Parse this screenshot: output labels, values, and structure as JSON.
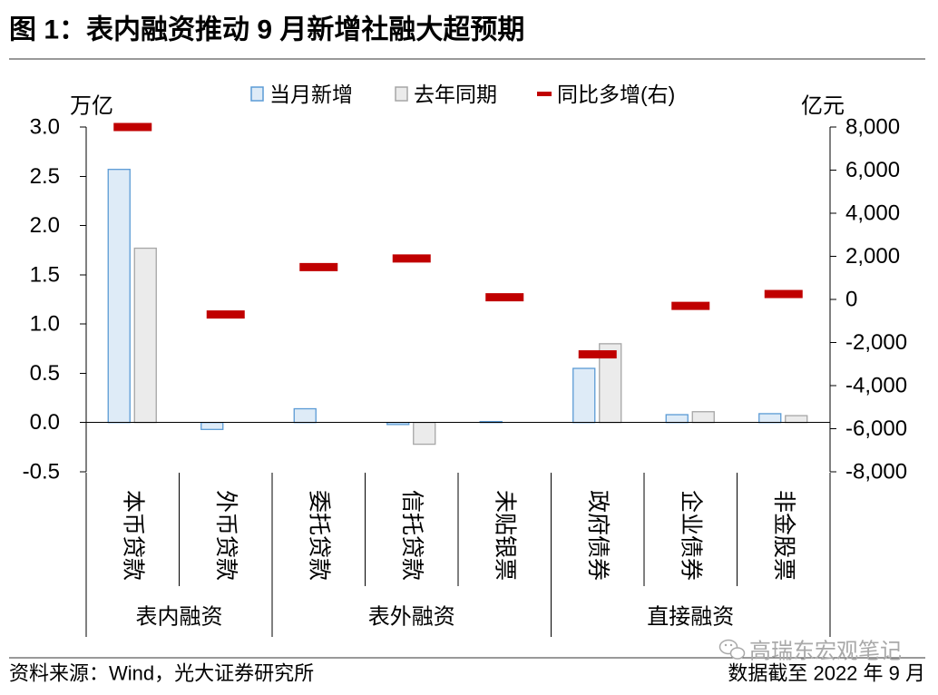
{
  "title": "图 1：表内融资推动 9 月新增社融大超预期",
  "footer": {
    "source": "资料来源：Wind，光大证券研究所",
    "date_note": "数据截至 2022 年 9 月"
  },
  "watermark": {
    "icon": "wechat-icon",
    "text": "高瑞东宏观笔记"
  },
  "chart_data": {
    "type": "bar",
    "categories": [
      "本币贷款",
      "外币贷款",
      "委托贷款",
      "信托贷款",
      "未贴银票",
      "政府债券",
      "企业债券",
      "非金股票"
    ],
    "category_groups": [
      {
        "name": "表内融资",
        "categories": [
          "本币贷款",
          "外币贷款"
        ]
      },
      {
        "name": "表外融资",
        "categories": [
          "委托贷款",
          "信托贷款",
          "未贴银票"
        ]
      },
      {
        "name": "直接融资",
        "categories": [
          "政府债券",
          "企业债券",
          "非金股票"
        ]
      }
    ],
    "series": [
      {
        "name": "当月新增",
        "type": "bar",
        "axis": "left",
        "color": "#5b9bd5",
        "fill": "#deebf7",
        "values": [
          2.57,
          -0.07,
          0.14,
          -0.02,
          0.01,
          0.55,
          0.08,
          0.09
        ]
      },
      {
        "name": "去年同期",
        "type": "bar",
        "axis": "left",
        "color": "#a6a6a6",
        "fill": "#ebebeb",
        "values": [
          1.77,
          0.0,
          0.0,
          -0.22,
          0.0,
          0.8,
          0.11,
          0.07
        ]
      },
      {
        "name": "同比多增(右)",
        "type": "marker",
        "axis": "right",
        "color": "#c00000",
        "values": [
          8000,
          -700,
          1500,
          1900,
          100,
          -2550,
          -300,
          250
        ]
      }
    ],
    "left_axis": {
      "label": "万亿",
      "ylim": [
        -0.5,
        3.0
      ],
      "ticks": [
        3.0,
        2.5,
        2.0,
        1.5,
        1.0,
        0.5,
        0.0,
        -0.5
      ],
      "tick_labels": [
        "3.0",
        "2.5",
        "2.0",
        "1.5",
        "1.0",
        "0.5",
        "0.0",
        "-0.5"
      ]
    },
    "right_axis": {
      "label": "亿元",
      "ylim": [
        -8000,
        8000
      ],
      "ticks": [
        8000,
        6000,
        4000,
        2000,
        0,
        -2000,
        -4000,
        -6000,
        -8000
      ],
      "tick_labels": [
        "8,000",
        "6,000",
        "4,000",
        "2,000",
        "0",
        "-2,000",
        "-4,000",
        "-6,000",
        "-8,000"
      ]
    },
    "legend_position": "top-center",
    "grid": false
  }
}
